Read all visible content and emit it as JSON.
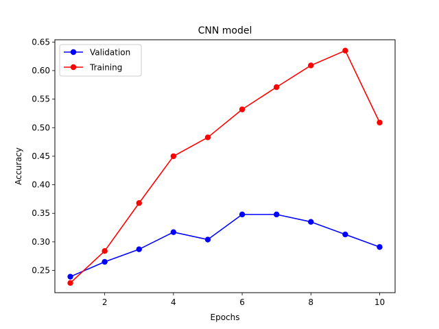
{
  "chart_data": {
    "type": "line",
    "title": "CNN model",
    "xlabel": "Epochs",
    "ylabel": "Accuracy",
    "x": [
      1,
      2,
      3,
      4,
      5,
      6,
      7,
      8,
      9,
      10
    ],
    "xlim": [
      0.55,
      10.45
    ],
    "ylim": [
      0.211,
      0.654
    ],
    "xticks": [
      2,
      4,
      6,
      8,
      10
    ],
    "yticks": [
      0.25,
      0.3,
      0.35,
      0.4,
      0.45,
      0.5,
      0.55,
      0.6,
      0.65
    ],
    "grid": false,
    "legend_position": "top-left",
    "series": [
      {
        "name": "Validation",
        "color": "#0000ff",
        "marker": "circle",
        "values": [
          0.239,
          0.265,
          0.287,
          0.317,
          0.304,
          0.348,
          0.348,
          0.335,
          0.313,
          0.291
        ]
      },
      {
        "name": "Training",
        "color": "#ff0000",
        "marker": "circle",
        "values": [
          0.228,
          0.284,
          0.368,
          0.45,
          0.483,
          0.532,
          0.571,
          0.609,
          0.635,
          0.509
        ]
      }
    ]
  }
}
